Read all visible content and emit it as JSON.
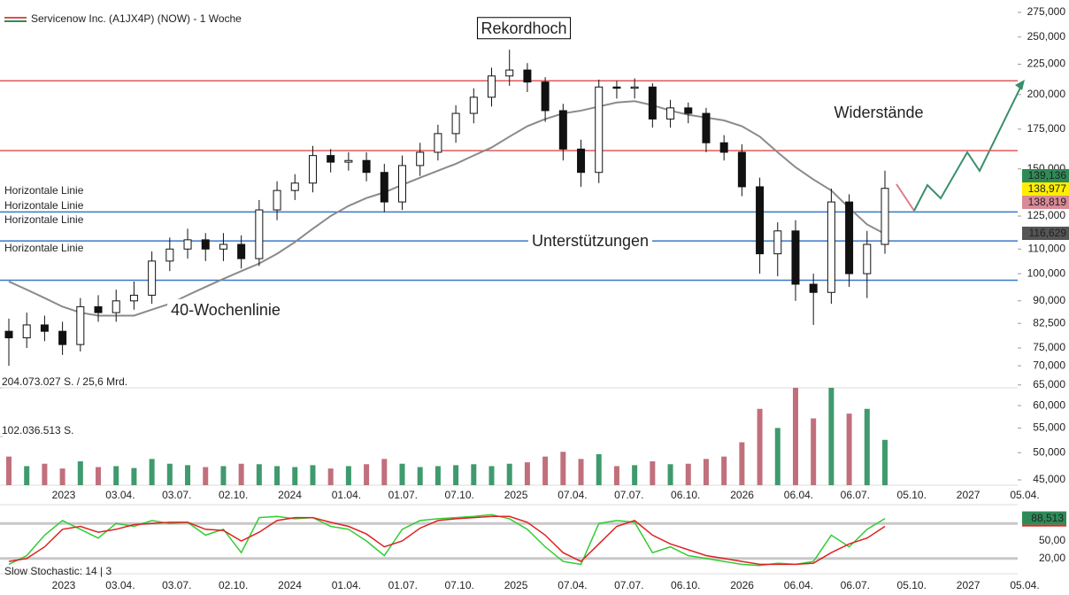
{
  "chart_data": [
    {
      "type": "candlestick",
      "legend": "Servicenow Inc. (A1JX4P) (NOW) - 1 Woche",
      "legend_colors": [
        "#d9534f",
        "#2e8b57"
      ],
      "open": [
        80000,
        78000,
        82000,
        80000,
        76000,
        88000,
        86000,
        90000,
        92000,
        105000,
        110000,
        114000,
        110000,
        112000,
        106000,
        128000,
        138000,
        142000,
        158000,
        154000,
        155000,
        148000,
        132000,
        152000,
        160000,
        172000,
        186000,
        198000,
        215000,
        220000,
        210000,
        188000,
        162000,
        148000,
        206000,
        205000,
        206000,
        182000,
        190000,
        186000,
        166000,
        160000,
        140000,
        108000,
        118000,
        96000,
        93000,
        132000,
        100000,
        112000
      ],
      "high": [
        84000,
        86000,
        85000,
        83000,
        91000,
        92000,
        94000,
        97000,
        109000,
        115000,
        119000,
        117000,
        117000,
        116000,
        133000,
        143000,
        147000,
        164000,
        162000,
        160000,
        160000,
        153000,
        158000,
        166000,
        178000,
        192000,
        205000,
        222000,
        238000,
        226000,
        214000,
        193000,
        168000,
        212000,
        211000,
        213000,
        209000,
        196000,
        194000,
        190000,
        171000,
        165000,
        145000,
        122000,
        123000,
        100000,
        139000,
        136000,
        118000,
        149000
      ],
      "low": [
        70000,
        75000,
        77000,
        73000,
        74000,
        83000,
        83000,
        87000,
        89000,
        101000,
        106000,
        105000,
        105000,
        102000,
        103000,
        123000,
        133000,
        137000,
        148000,
        149000,
        143000,
        127000,
        128000,
        146000,
        155000,
        166000,
        179000,
        191000,
        207000,
        202000,
        180000,
        155000,
        140000,
        142000,
        197000,
        197000,
        176000,
        176000,
        179000,
        160000,
        155000,
        135000,
        100000,
        99000,
        90000,
        82000,
        89000,
        95000,
        91000,
        108000
      ],
      "close": [
        78000,
        82000,
        80000,
        76000,
        88000,
        86000,
        90000,
        92000,
        105000,
        110000,
        114000,
        110000,
        112000,
        106000,
        128000,
        138000,
        142000,
        158000,
        154000,
        155000,
        148000,
        132000,
        152000,
        160000,
        172000,
        186000,
        198000,
        215000,
        220000,
        210000,
        188000,
        162000,
        148000,
        206000,
        205000,
        206000,
        182000,
        190000,
        186000,
        166000,
        160000,
        140000,
        108000,
        118000,
        96000,
        93000,
        132000,
        100000,
        112000,
        139136
      ],
      "up_color": "#ffffff",
      "down_color": "#111111",
      "ma_values": [
        97000,
        94000,
        91000,
        88000,
        86000,
        85000,
        85000,
        85000,
        87000,
        89000,
        92000,
        95000,
        98000,
        101000,
        104000,
        108000,
        113000,
        119000,
        125000,
        130000,
        134000,
        137000,
        141000,
        145000,
        149000,
        153000,
        158000,
        163000,
        170000,
        177000,
        182000,
        186000,
        188000,
        191000,
        194000,
        195000,
        192000,
        188000,
        185000,
        183000,
        181000,
        177000,
        170000,
        160000,
        151000,
        144000,
        138000,
        129000,
        121000,
        116629
      ],
      "ma_color": "#8a8a8a",
      "log_scale": true,
      "ylim": [
        45000,
        275000
      ],
      "yticks": [
        {
          "value": 275000,
          "label": "275,000"
        },
        {
          "value": 250000,
          "label": "250,000"
        },
        {
          "value": 225000,
          "label": "225,000"
        },
        {
          "value": 200000,
          "label": "200,000"
        },
        {
          "value": 175000,
          "label": "175,000"
        },
        {
          "value": 150000,
          "label": "150,000"
        },
        {
          "value": 125000,
          "label": "125,000"
        },
        {
          "value": 110000,
          "label": "110,000"
        },
        {
          "value": 100000,
          "label": "100,000"
        },
        {
          "value": 90000,
          "label": "90,000"
        },
        {
          "value": 82500,
          "label": "82,500"
        },
        {
          "value": 75000,
          "label": "75,000"
        },
        {
          "value": 70000,
          "label": "70,000"
        },
        {
          "value": 65000,
          "label": "65,000"
        },
        {
          "value": 60000,
          "label": "60,000"
        },
        {
          "value": 55000,
          "label": "55,000"
        },
        {
          "value": 50000,
          "label": "50,000"
        },
        {
          "value": 45000,
          "label": "45,000"
        }
      ],
      "hlines": [
        {
          "value": 211000,
          "color": "#e05a5a"
        },
        {
          "value": 161000,
          "color": "#e05a5a"
        },
        {
          "value": 127000,
          "color": "#3a78c9"
        },
        {
          "value": 113500,
          "color": "#3a78c9"
        },
        {
          "value": 97500,
          "color": "#3a78c9"
        }
      ],
      "line_labels": [
        {
          "label": "Horizontale Linie",
          "color": "#3a78c9"
        },
        {
          "label": "Horizontale Linie",
          "color": "#3a78c9"
        },
        {
          "label": "Horizontale Linie",
          "color": "#3a78c9"
        },
        {
          "label": "Horizontale Linie",
          "color": "#e05a5a"
        }
      ],
      "last_labels": [
        {
          "value": 139136,
          "label": "139,136",
          "bg": "#2e8b57",
          "fg": "#ffffff"
        },
        {
          "value": 138977,
          "label": "138,977",
          "bg": "#ffee00",
          "fg": "#000000"
        },
        {
          "value": 138819,
          "label": "138,819",
          "bg": "#d98a96",
          "fg": "#ffffff"
        },
        {
          "value": 116629,
          "label": "116,629",
          "bg": "#555555",
          "fg": "#ffffff"
        }
      ],
      "annotations": [
        {
          "text": "Rekordhoch",
          "color": "#000000"
        },
        {
          "text": "Widerstände",
          "color": "#e05a5a"
        },
        {
          "text": "Unterstützungen",
          "color": "#3a78c9"
        },
        {
          "text": "40-Wochenlinie",
          "color": "#8a8a8a"
        }
      ],
      "x_labels": [
        "2023",
        "03.04.",
        "03.07.",
        "02.10.",
        "2024",
        "01.04.",
        "01.07.",
        "07.10.",
        "2025",
        "07.04.",
        "07.07.",
        "06.10.",
        "2026",
        "06.04.",
        "06.07.",
        "05.10.",
        "2027",
        "05.04."
      ]
    },
    {
      "type": "bar",
      "values": [
        60000000,
        40000000,
        45000000,
        35000000,
        50000000,
        38000000,
        40000000,
        36000000,
        55000000,
        45000000,
        42000000,
        38000000,
        40000000,
        45000000,
        44000000,
        40000000,
        38000000,
        42000000,
        35000000,
        40000000,
        44000000,
        55000000,
        45000000,
        38000000,
        40000000,
        42000000,
        44000000,
        40000000,
        45000000,
        48000000,
        60000000,
        70000000,
        55000000,
        65000000,
        40000000,
        42000000,
        50000000,
        44000000,
        45000000,
        55000000,
        60000000,
        90000000,
        160000000,
        120000000,
        204073027,
        140000000,
        204073027,
        150000000,
        160000000,
        95000000
      ],
      "up_color": "#3f9a6e",
      "down_color": "#c0707c",
      "ylim": [
        0,
        204073027
      ],
      "yticks": [
        {
          "value": 204073027,
          "label": "204.073.027 S. / 25,6 Mrd."
        },
        {
          "value": 102036513,
          "label": "102.036.513 S."
        }
      ]
    },
    {
      "type": "line",
      "label": "Slow Stochastic: 14 | 3",
      "series": [
        {
          "color": "#33cc33",
          "values": [
            10,
            25,
            60,
            85,
            70,
            55,
            80,
            75,
            85,
            80,
            82,
            60,
            70,
            30,
            90,
            92,
            88,
            90,
            75,
            70,
            50,
            25,
            70,
            85,
            88,
            90,
            92,
            95,
            88,
            70,
            40,
            15,
            10,
            80,
            85,
            82,
            30,
            40,
            25,
            20,
            15,
            10,
            8,
            12,
            10,
            15,
            60,
            40,
            70,
            88.513
          ]
        },
        {
          "color": "#dd2222",
          "values": [
            15,
            20,
            40,
            70,
            75,
            65,
            70,
            78,
            80,
            82,
            82,
            70,
            68,
            50,
            65,
            85,
            90,
            90,
            82,
            75,
            62,
            40,
            50,
            72,
            85,
            88,
            90,
            92,
            92,
            82,
            60,
            30,
            15,
            45,
            75,
            85,
            60,
            45,
            35,
            25,
            20,
            15,
            10,
            10,
            10,
            12,
            30,
            45,
            55,
            75
          ]
        }
      ],
      "ylim": [
        0,
        100
      ],
      "yticks": [
        {
          "value": 50,
          "label": "50,00"
        },
        {
          "value": 20,
          "label": "20,00"
        }
      ],
      "levels": [
        20,
        80
      ],
      "last_label": {
        "value": 88.513,
        "label": "88,513",
        "bg": "#2e8b57",
        "fg": "#ffffff"
      }
    }
  ]
}
